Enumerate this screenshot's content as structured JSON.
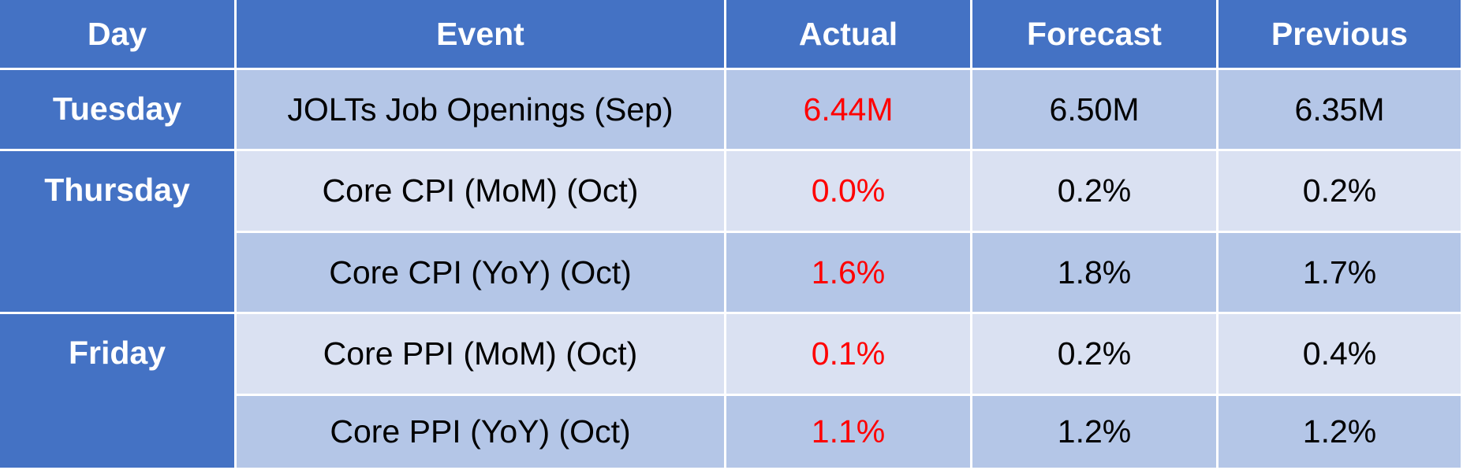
{
  "header": [
    "Day",
    "Event",
    "Actual",
    "Forecast",
    "Previous"
  ],
  "groups": [
    {
      "day": "Tuesday",
      "events": [
        {
          "event": "JOLTs Job Openings (Sep)",
          "actual": "6.44M",
          "forecast": "6.50M",
          "previous": "6.35M"
        }
      ]
    },
    {
      "day": "Thursday",
      "events": [
        {
          "event": "Core CPI (MoM) (Oct)",
          "actual": "0.0%",
          "forecast": "0.2%",
          "previous": "0.2%"
        },
        {
          "event": "Core CPI (YoY) (Oct)",
          "actual": "1.6%",
          "forecast": "1.8%",
          "previous": "1.7%"
        }
      ]
    },
    {
      "day": "Friday",
      "events": [
        {
          "event": "Core PPI (MoM) (Oct)",
          "actual": "0.1%",
          "forecast": "0.2%",
          "previous": "0.4%"
        },
        {
          "event": "Core PPI (YoY) (Oct)",
          "actual": "1.1%",
          "forecast": "1.2%",
          "previous": "1.2%"
        }
      ]
    }
  ]
}
